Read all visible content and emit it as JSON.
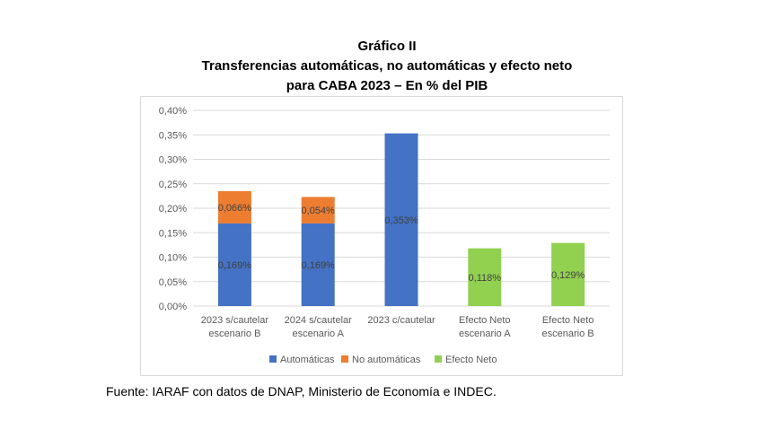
{
  "chart_data": {
    "type": "bar",
    "stacked": true,
    "title": "Gráfico II",
    "subtitle_lines": [
      "Transferencias automáticas, no automáticas y efecto neto",
      "para CABA 2023 – En % del PIB"
    ],
    "categories": [
      [
        "2023 s/cautelar",
        "escenario B"
      ],
      [
        "2024 s/cautelar",
        "escenario A"
      ],
      [
        "2023 c/cautelar"
      ],
      [
        "Efecto Neto",
        "escenario A"
      ],
      [
        "Efecto Neto",
        "escenario B"
      ]
    ],
    "series": [
      {
        "name": "Automáticas",
        "color": "#4472c4",
        "values": [
          0.169,
          0.169,
          0.353,
          null,
          null
        ],
        "labels": [
          "0,169%",
          "0,169%",
          "0,353%",
          "",
          ""
        ]
      },
      {
        "name": "No automáticas",
        "color": "#ed7d31",
        "values": [
          0.066,
          0.054,
          null,
          null,
          null
        ],
        "labels": [
          "0,066%",
          "0,054%",
          "",
          "",
          ""
        ]
      },
      {
        "name": "Efecto Neto",
        "color": "#92d050",
        "values": [
          null,
          null,
          null,
          0.118,
          0.129
        ],
        "labels": [
          "",
          "",
          "",
          "0,118%",
          "0,129%"
        ]
      }
    ],
    "ylim": [
      0,
      0.4
    ],
    "yticks": [
      0.0,
      0.05,
      0.1,
      0.15,
      0.2,
      0.25,
      0.3,
      0.35,
      0.4
    ],
    "ytick_labels": [
      "0,00%",
      "0,05%",
      "0,10%",
      "0,15%",
      "0,20%",
      "0,25%",
      "0,30%",
      "0,35%",
      "0,40%"
    ],
    "grid": true,
    "legend": "bottom",
    "gridline_color": "#d9d9d9"
  },
  "source": "Fuente: IARAF con datos de DNAP, Ministerio de Economía e INDEC."
}
